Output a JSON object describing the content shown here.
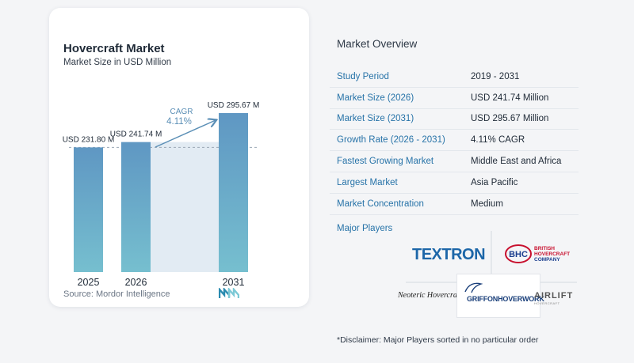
{
  "chart": {
    "title": "Hovercraft Market",
    "subtitle": "Market Size in USD Million",
    "source": "Source: Mordor Intelligence",
    "cagr_label": "CAGR",
    "cagr_value": "4.11%"
  },
  "chart_data": {
    "type": "bar",
    "title": "Hovercraft Market",
    "subtitle": "Market Size in USD Million",
    "categories": [
      "2025",
      "2026",
      "2031"
    ],
    "values": [
      231.8,
      241.74,
      295.67
    ],
    "data_labels": [
      "USD 231.80 M",
      "USD 241.74 M",
      "USD 295.67 M"
    ],
    "ylim": [
      0,
      300
    ],
    "annotation": "CAGR 4.11%",
    "colors": {
      "bar_top": "#5f97c3",
      "bar_bottom": "#76bfcf",
      "shade": "#e2ebf3",
      "arrow": "#5b8fb6"
    }
  },
  "overview": {
    "title": "Market Overview",
    "rows": [
      {
        "label": "Study Period",
        "value": "2019 - 2031"
      },
      {
        "label": "Market Size (2026)",
        "value": "USD 241.74 Million"
      },
      {
        "label": "Market Size (2031)",
        "value": "USD 295.67 Million"
      },
      {
        "label": "Growth Rate (2026 - 2031)",
        "value": "4.11% CAGR"
      },
      {
        "label": "Fastest Growing Market",
        "value": "Middle East and Africa"
      },
      {
        "label": "Largest Market",
        "value": "Asia Pacific"
      },
      {
        "label": "Market Concentration",
        "value": "Medium"
      }
    ],
    "players_title": "Major Players",
    "players": {
      "textron": "TEXTRON",
      "bhc_line1": "BRITISH",
      "bhc_line2": "HOVERCRAFT",
      "bhc_line3": "COMPANY",
      "neoteric": "Neoteric Hovercraft, Inc.",
      "griffon": "GRIFFONHOVERWORK",
      "airlift": "AIRLIFT",
      "airlift_sub": "HOVERCRAFT"
    },
    "disclaimer": "*Disclaimer: Major Players sorted in no particular order"
  }
}
